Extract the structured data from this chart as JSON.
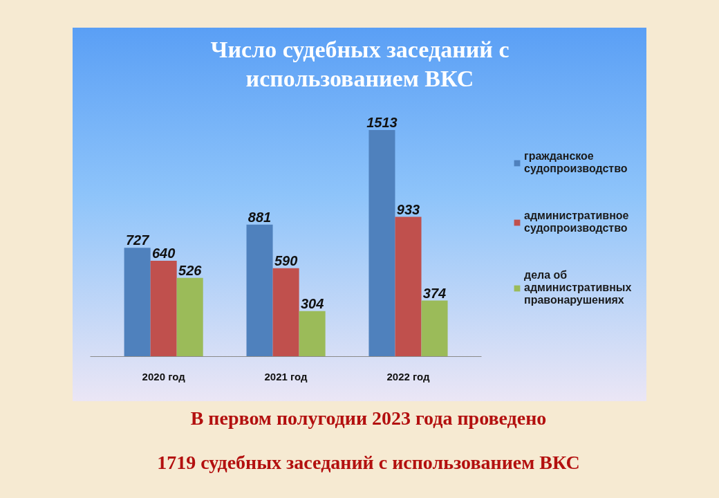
{
  "chart_data": {
    "type": "bar",
    "title": "Число судебных заседаний с использованием ВКС",
    "categories": [
      "2020 год",
      "2021 год",
      "2022 год"
    ],
    "series": [
      {
        "name": "гражданское судопроизводство",
        "color": "#4f81bd",
        "values": [
          727,
          881,
          1513
        ]
      },
      {
        "name": "административное судопроизводство",
        "color": "#c0504d",
        "values": [
          640,
          590,
          933
        ]
      },
      {
        "name": "дела об административных правонарушениях",
        "color": "#9bbb59",
        "values": [
          526,
          304,
          374
        ]
      }
    ],
    "data_labels": true,
    "legend": "right",
    "annotations": [
      "В первом полугодии 2023 года проведено",
      "1719 судебных заседаний с использованием ВКС"
    ]
  }
}
